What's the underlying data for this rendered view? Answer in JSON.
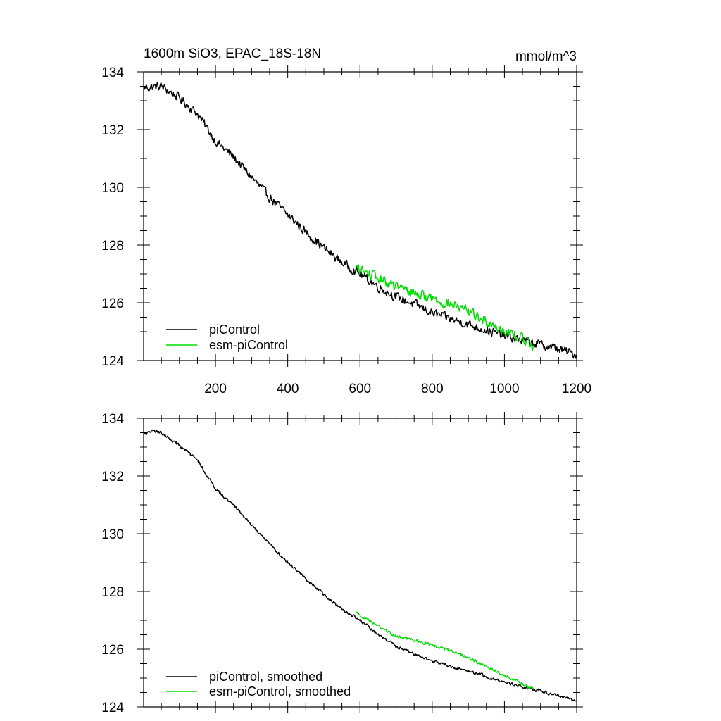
{
  "header": {
    "title": "1600m SiO3, EPAC_18S-18N",
    "units": "mmol/m^3"
  },
  "colors": {
    "piControl": "#000000",
    "esm_piControl": "#00dd00",
    "axis": "#000000",
    "background": "#ffffff"
  },
  "chart_data": [
    {
      "type": "line",
      "panel": "top",
      "xlim": [
        1,
        1200
      ],
      "ylim": [
        124,
        134
      ],
      "x_ticks": [
        200,
        400,
        600,
        800,
        1000,
        1200
      ],
      "x_tick_labels": [
        "200",
        "400",
        "600",
        "800",
        "1000",
        "1200"
      ],
      "y_ticks": [
        124,
        126,
        128,
        130,
        132,
        134
      ],
      "y_tick_labels": [
        "124",
        "126",
        "128",
        "130",
        "132",
        "134"
      ],
      "grid": false,
      "legend_position": "bottom-left",
      "series": [
        {
          "name": "piControl",
          "color": "#000000",
          "noise": 0.14,
          "x": [
            1,
            50,
            100,
            150,
            200,
            250,
            300,
            350,
            400,
            450,
            500,
            550,
            600,
            650,
            700,
            750,
            800,
            850,
            900,
            950,
            1000,
            1050,
            1100,
            1150,
            1200
          ],
          "y": [
            133.45,
            133.5,
            133.1,
            132.55,
            131.6,
            131.05,
            130.35,
            129.65,
            129.05,
            128.45,
            127.9,
            127.4,
            127.0,
            126.55,
            126.2,
            125.95,
            125.65,
            125.45,
            125.25,
            125.05,
            124.85,
            124.7,
            124.55,
            124.4,
            124.2
          ]
        },
        {
          "name": "esm-piControl",
          "color": "#00dd00",
          "noise": 0.16,
          "x": [
            590,
            650,
            700,
            750,
            800,
            850,
            900,
            950,
            1000,
            1050,
            1080
          ],
          "y": [
            127.2,
            126.85,
            126.55,
            126.35,
            126.15,
            125.95,
            125.7,
            125.35,
            125.05,
            124.75,
            124.55
          ]
        }
      ]
    },
    {
      "type": "line",
      "panel": "bottom",
      "xlim": [
        1,
        1200
      ],
      "ylim": [
        124,
        134
      ],
      "x_ticks": [
        200,
        400,
        600,
        800,
        1000,
        1200
      ],
      "y_ticks": [
        124,
        126,
        128,
        130,
        132,
        134
      ],
      "y_tick_labels": [
        "124",
        "126",
        "128",
        "130",
        "132",
        "134"
      ],
      "grid": false,
      "legend_position": "bottom-left",
      "series": [
        {
          "name": "piControl, smoothed",
          "color": "#000000",
          "noise": 0.05,
          "x": [
            1,
            25,
            50,
            100,
            150,
            200,
            250,
            300,
            350,
            400,
            450,
            500,
            550,
            600,
            650,
            700,
            750,
            800,
            850,
            900,
            950,
            1000,
            1050,
            1100,
            1150,
            1200
          ],
          "y": [
            133.45,
            133.55,
            133.5,
            133.05,
            132.55,
            131.55,
            131.0,
            130.3,
            129.65,
            129.0,
            128.45,
            127.9,
            127.4,
            127.0,
            126.5,
            126.1,
            125.85,
            125.6,
            125.4,
            125.25,
            125.05,
            124.85,
            124.7,
            124.55,
            124.4,
            124.2
          ]
        },
        {
          "name": "esm-piControl, smoothed",
          "color": "#00dd00",
          "noise": 0.05,
          "x": [
            590,
            650,
            700,
            750,
            800,
            850,
            900,
            950,
            1000,
            1050,
            1080
          ],
          "y": [
            127.25,
            126.8,
            126.45,
            126.3,
            126.15,
            125.95,
            125.7,
            125.4,
            125.1,
            124.8,
            124.6
          ]
        }
      ]
    }
  ]
}
